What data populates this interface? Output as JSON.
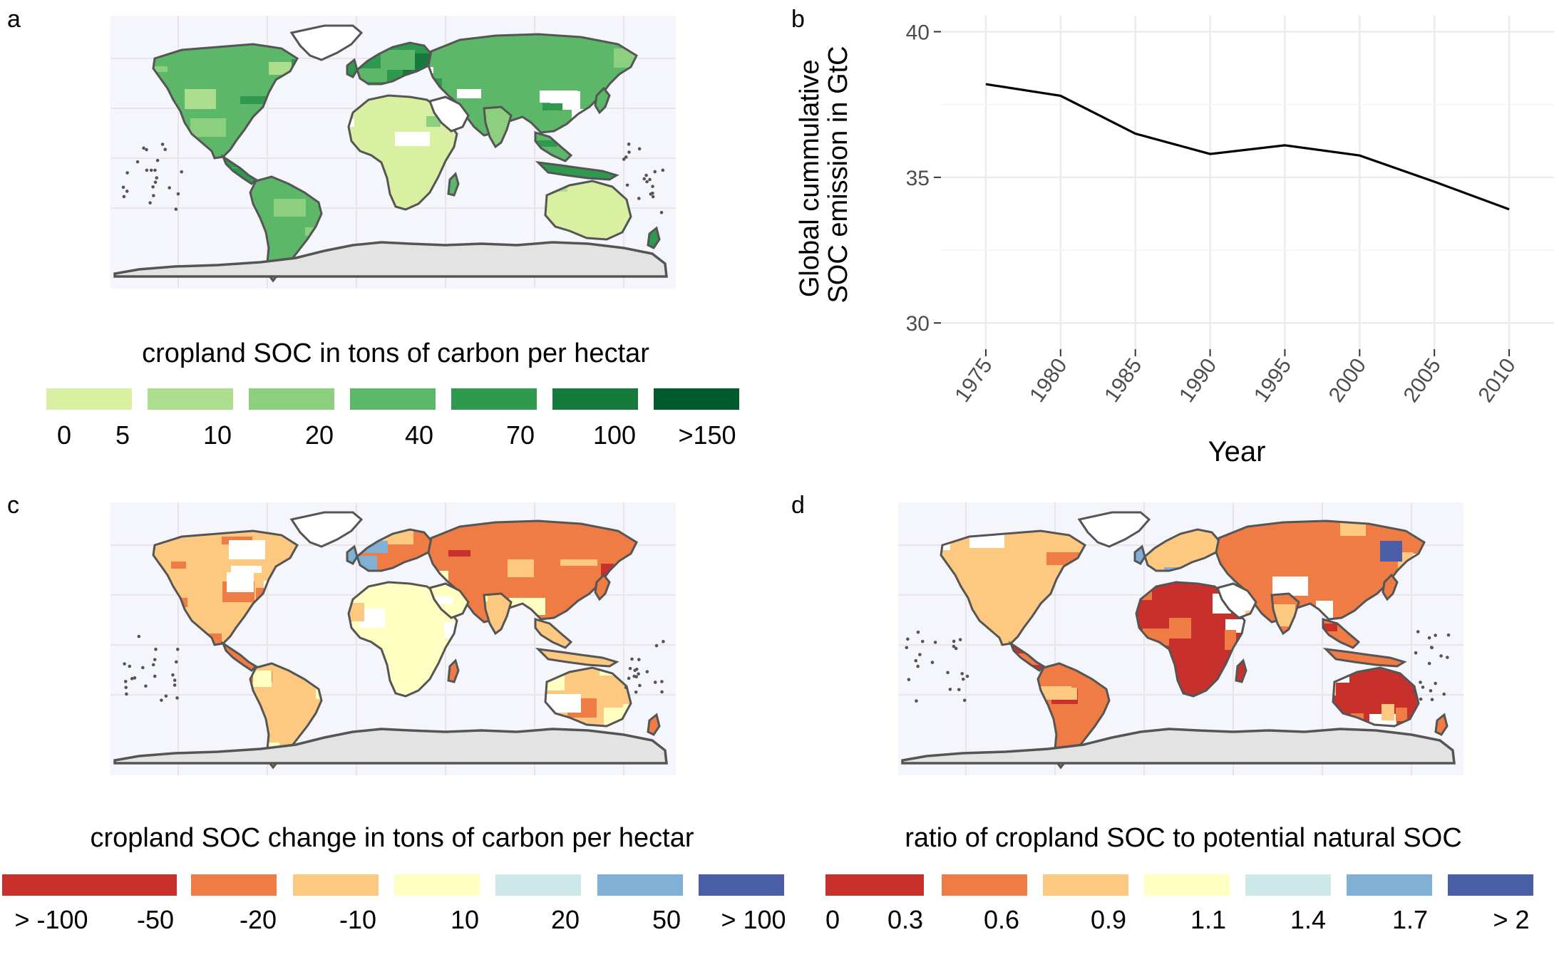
{
  "panels": {
    "a": "a",
    "b": "b",
    "c": "c",
    "d": "d"
  },
  "map_colors": {
    "ocean": "#f5f6fc",
    "land_outline": "#555555",
    "antarctica": "#e3e3e3",
    "ice": "#ffffff"
  },
  "legend_a": {
    "title": "cropland SOC in tons of carbon per hectar",
    "colors": [
      "#d9f0a3",
      "#addd8e",
      "#8ccf7e",
      "#5cb769",
      "#2f9a4f",
      "#167a3c",
      "#005a2b"
    ],
    "labels": [
      "0",
      "5",
      "10",
      "20",
      "40",
      "70",
      "100",
      ">150"
    ]
  },
  "legend_c": {
    "title": "cropland SOC change in tons of carbon per hectar",
    "colors": [
      "#c8302c",
      "#f07c45",
      "#fdc980",
      "#ffffc2",
      "#cde8e8",
      "#80b0d6",
      "#4a5ea8"
    ],
    "labels": [
      "> -100",
      "-50",
      "-20",
      "-10",
      "10",
      "20",
      "50",
      "> 100"
    ]
  },
  "legend_d": {
    "title": "ratio of cropland SOC to potential natural SOC",
    "colors": [
      "#c8302c",
      "#f07c45",
      "#fdc980",
      "#ffffc2",
      "#cde8e8",
      "#80b0d6",
      "#4a5ea8"
    ],
    "labels": [
      "0",
      "0.3",
      "0.6",
      "0.9",
      "1.1",
      "1.4",
      "1.7",
      "> 2"
    ]
  },
  "chart_data": {
    "type": "line",
    "title": "",
    "xlabel": "Year",
    "ylabel": "Global cummulative SOC emission in GtC",
    "ylabel_lines": [
      "Global cummulative",
      "SOC emission in GtC"
    ],
    "x": [
      1975,
      1980,
      1985,
      1990,
      1995,
      2000,
      2005,
      2010
    ],
    "series": [
      {
        "values": [
          38.2,
          37.8,
          36.5,
          35.8,
          36.1,
          35.75,
          34.85,
          33.9
        ]
      }
    ],
    "ylim": [
      29.1,
      40.55
    ],
    "yticks": [
      30,
      35,
      40
    ],
    "xticks": [
      "1975",
      "1980",
      "1985",
      "1990",
      "1995",
      "2000",
      "2005",
      "2010"
    ],
    "grid": true,
    "line_color": "#000000",
    "grid_color": "#ebebeb"
  }
}
